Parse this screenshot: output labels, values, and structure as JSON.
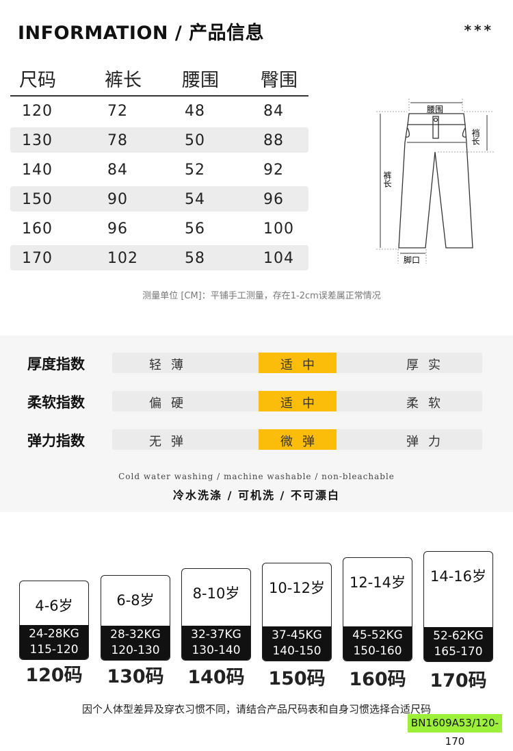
{
  "header": {
    "title": "INFORMATION  /  产品信息",
    "stars": "***"
  },
  "size_table": {
    "columns": [
      "尺码",
      "裤长",
      "腰围",
      "臀围"
    ],
    "rows": [
      [
        "120",
        "72",
        "48",
        "84"
      ],
      [
        "130",
        "78",
        "50",
        "88"
      ],
      [
        "140",
        "84",
        "52",
        "92"
      ],
      [
        "150",
        "90",
        "54",
        "96"
      ],
      [
        "160",
        "96",
        "56",
        "100"
      ],
      [
        "170",
        "102",
        "58",
        "104"
      ]
    ]
  },
  "diagram": {
    "waist": "腰围",
    "rise": "裆长",
    "length": "裤长",
    "hem": "脚口"
  },
  "note": "测量单位 [CM]：平铺手工测量，存在1-2cm误差属正常情况",
  "indices": [
    {
      "label": "厚度指数",
      "options": [
        "轻薄",
        "适中",
        "厚实"
      ],
      "selected": 1
    },
    {
      "label": "柔软指数",
      "options": [
        "偏硬",
        "适中",
        "柔软"
      ],
      "selected": 1
    },
    {
      "label": "弹力指数",
      "options": [
        "无弹",
        "微弹",
        "弹力"
      ],
      "selected": 1
    }
  ],
  "highlight_color": "#fbbd0a",
  "care": {
    "en": "Cold water washing / machine washable / non-bleachable",
    "cn": "冷水洗涤 / 可机洗 / 不可漂白"
  },
  "size_guide": [
    {
      "age": "4-6岁",
      "weight": "24-28KG",
      "height": "115-120",
      "size": "120码"
    },
    {
      "age": "6-8岁",
      "weight": "28-32KG",
      "height": "120-130",
      "size": "130码"
    },
    {
      "age": "8-10岁",
      "weight": "32-37KG",
      "height": "130-140",
      "size": "140码"
    },
    {
      "age": "10-12岁",
      "weight": "37-45KG",
      "height": "140-150",
      "size": "150码"
    },
    {
      "age": "12-14岁",
      "weight": "45-52KG",
      "height": "150-160",
      "size": "160码"
    },
    {
      "age": "14-16岁",
      "weight": "52-62KG",
      "height": "165-170",
      "size": "170码"
    }
  ],
  "footer": "因个人体型差异及穿衣习惯不同，请结合产品尺码表和自身习惯选择合适尺码",
  "product_code": "BN1609A53/120-170"
}
